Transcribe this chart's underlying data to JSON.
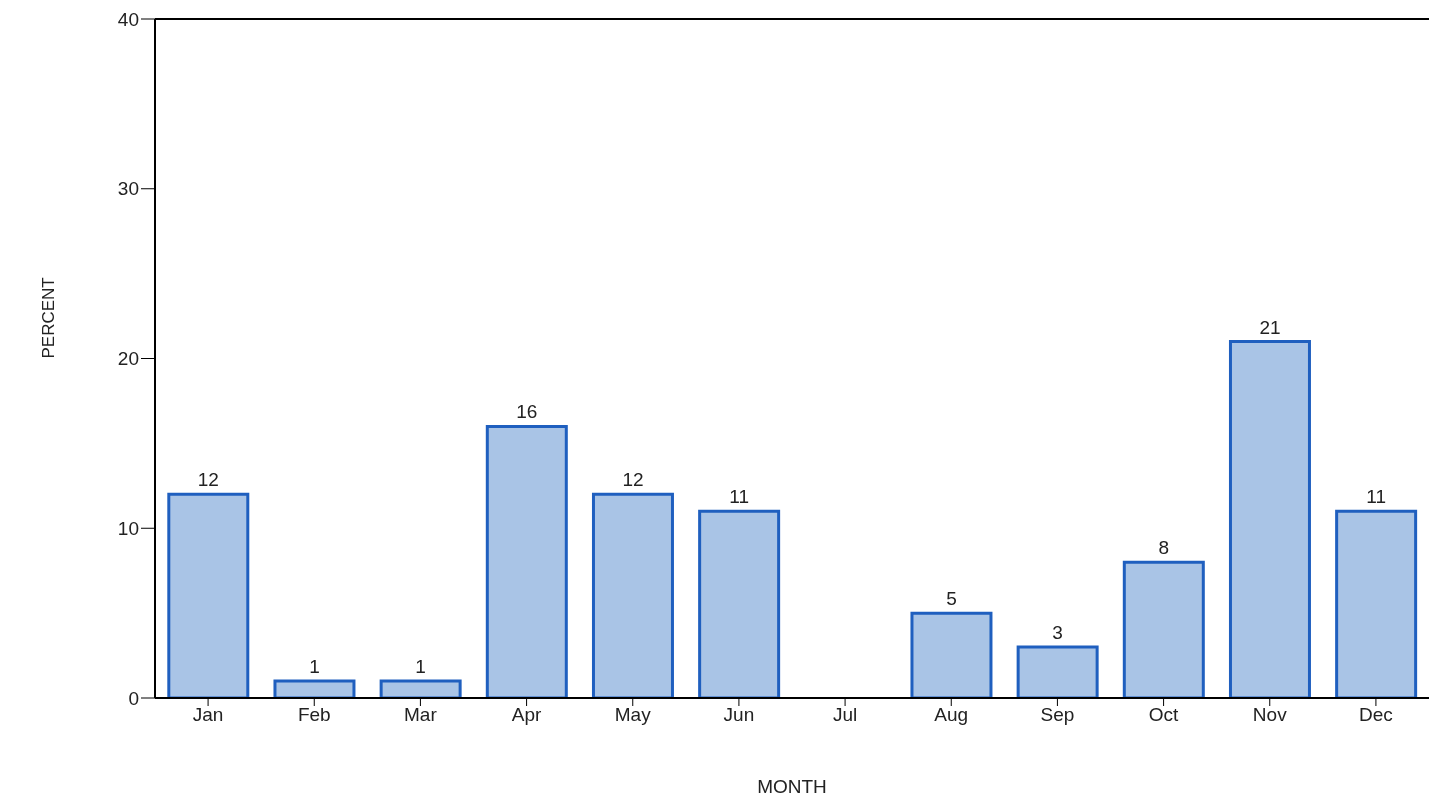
{
  "chart_data": {
    "type": "bar",
    "xlabel": "MONTH",
    "ylabel": "PERCENT",
    "categories": [
      "Jan",
      "Feb",
      "Mar",
      "Apr",
      "May",
      "Jun",
      "Jul",
      "Aug",
      "Sep",
      "Oct",
      "Nov",
      "Dec"
    ],
    "values": [
      12,
      1,
      1,
      16,
      12,
      11,
      null,
      5,
      3,
      8,
      21,
      11
    ],
    "color": "#a9c4e6",
    "ylim": [
      0,
      40
    ],
    "yticks": [
      0,
      10,
      20,
      30,
      40
    ],
    "grid": false,
    "data_labels": true
  }
}
